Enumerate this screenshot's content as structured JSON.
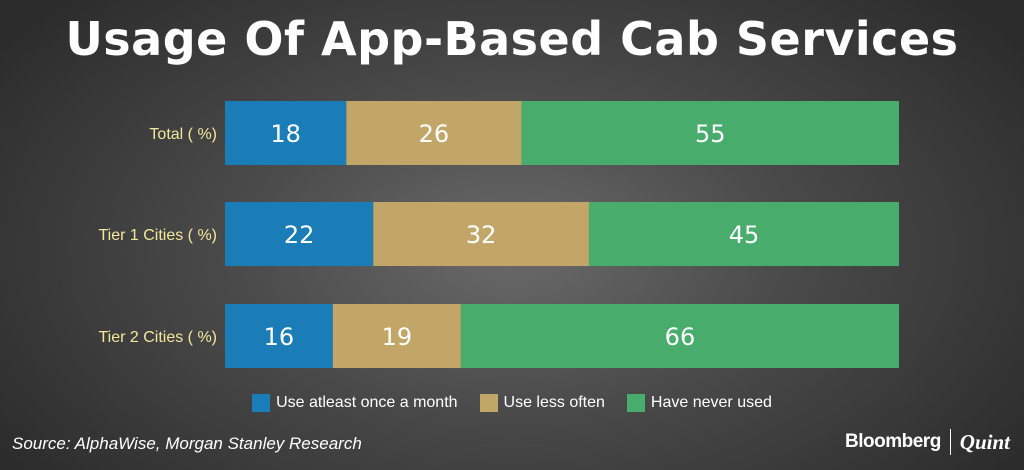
{
  "chart_data": {
    "type": "bar",
    "orientation": "horizontal",
    "stacked": true,
    "title": "Usage Of App-Based Cab Services",
    "categories": [
      "Total ( %)",
      "Tier 1 Cities ( %)",
      "Tier 2 Cities ( %)"
    ],
    "series": [
      {
        "name": "Use atleast once a month",
        "values": [
          18,
          22,
          16
        ]
      },
      {
        "name": "Use less often",
        "values": [
          26,
          32,
          19
        ]
      },
      {
        "name": "Have never used",
        "values": [
          55,
          45,
          66
        ]
      }
    ],
    "colors": [
      "#1a7db8",
      "#c2a668",
      "#48ad6c"
    ],
    "xlim": [
      0,
      100
    ],
    "legend": "bottom",
    "grid": false
  },
  "source": "Source: AlphaWise, Morgan Stanley Research",
  "brand": {
    "primary": "Bloomberg",
    "secondary": "Quint"
  },
  "label_color": "#f3e79b"
}
